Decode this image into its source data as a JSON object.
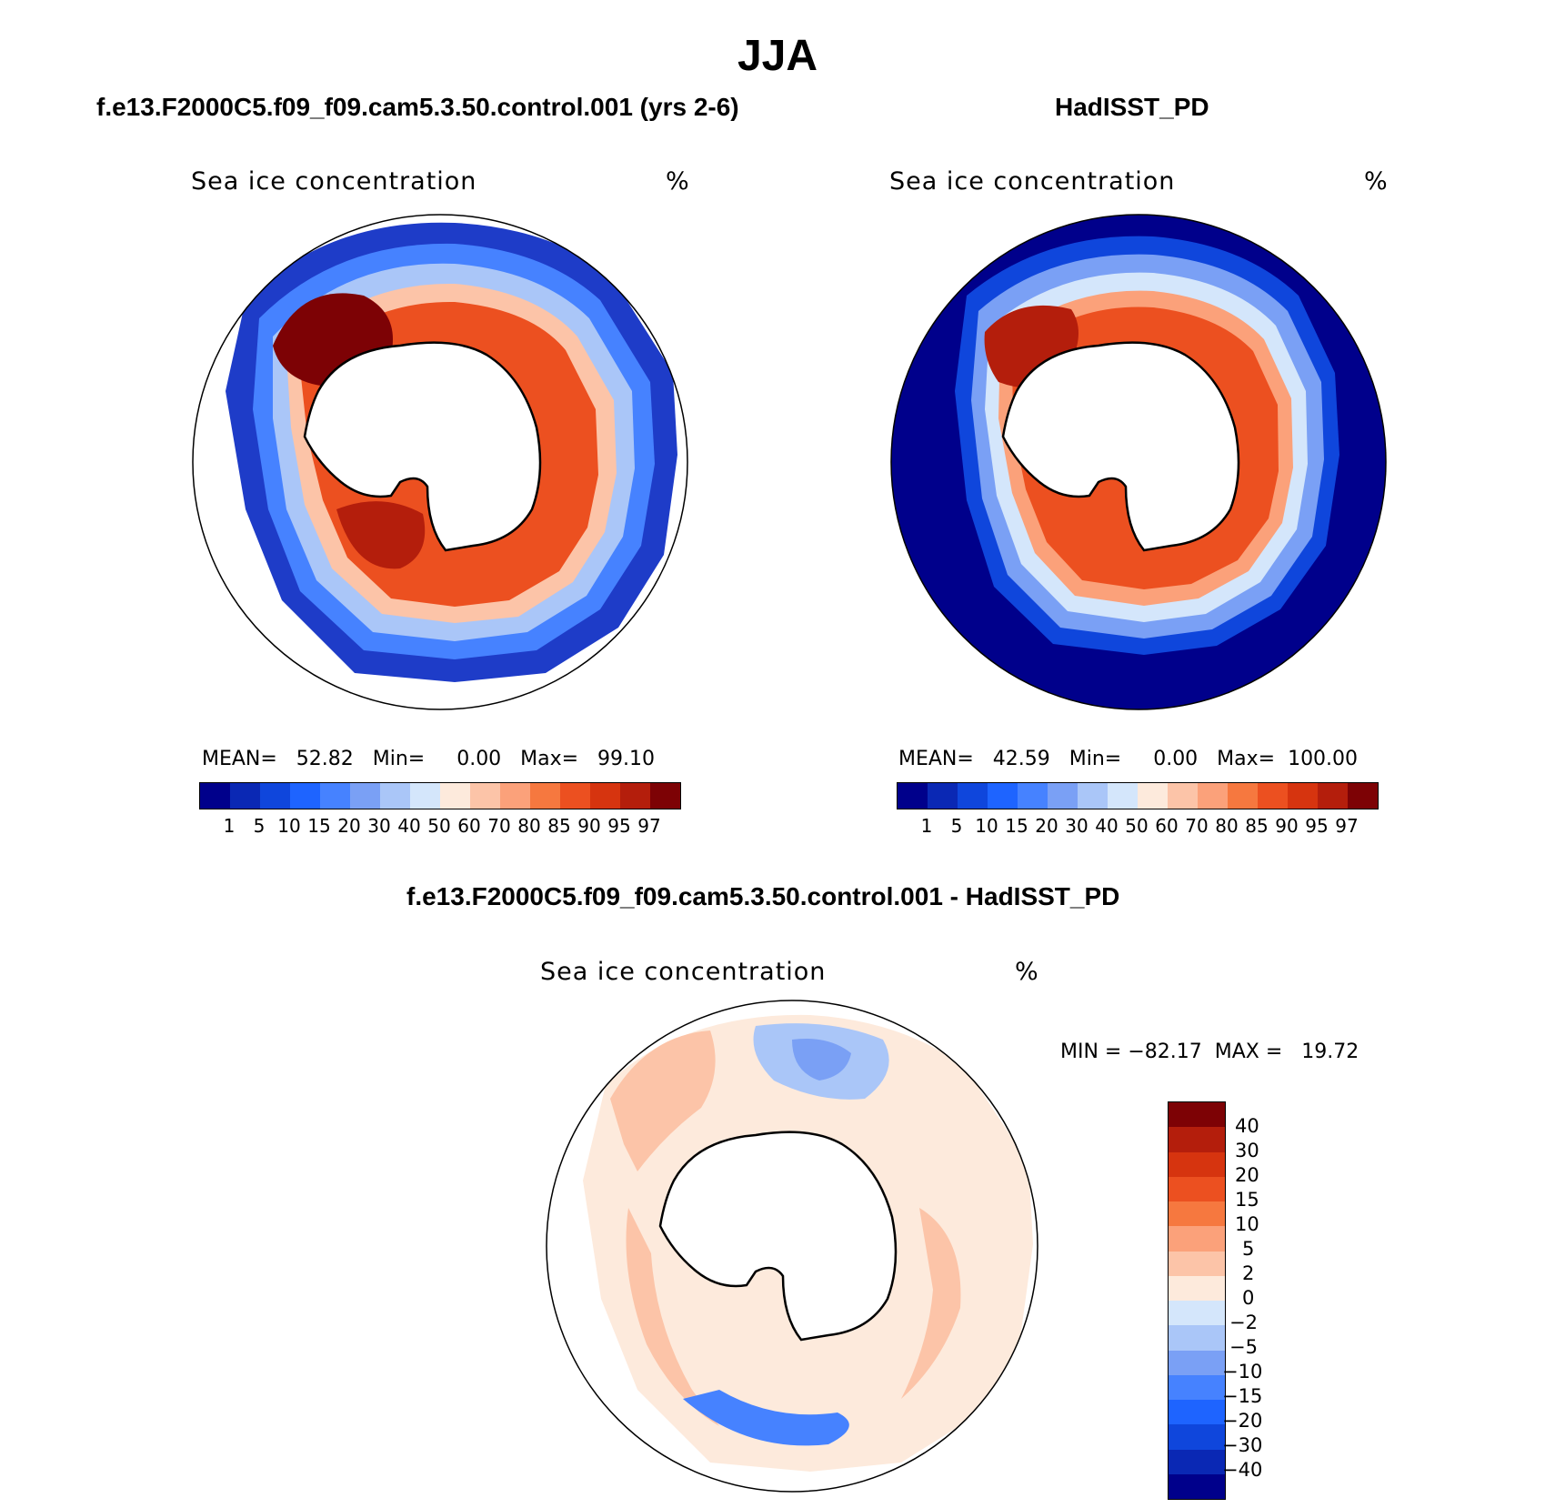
{
  "figure_title": "JJA",
  "color_scale": [
    "#00008b",
    "#0a28b4",
    "#0f46dc",
    "#1e64ff",
    "#4682ff",
    "#7aa0f5",
    "#aac6f8",
    "#d4e6fb",
    "#fdeadc",
    "#fcc4a8",
    "#fba17a",
    "#f6783f",
    "#ec5020",
    "#d6340f",
    "#b41e0c",
    "#7d0205"
  ],
  "diff_color_scale": [
    "#00008b",
    "#0a28b4",
    "#0f46dc",
    "#1e64ff",
    "#4682ff",
    "#7aa0f5",
    "#aac6f8",
    "#d4e6fb",
    "#fdeadc",
    "#fcc4a8",
    "#fba17a",
    "#f6783f",
    "#ec5020",
    "#d6340f",
    "#b41e0c",
    "#7d0205"
  ],
  "panels": [
    {
      "case_title": "f.e13.F2000C5.f09_f09.cam5.3.50.control.001 (yrs 2-6)",
      "variable": "Sea ice concentration",
      "units": "%",
      "stats": "MEAN=   52.82   Min=     0.00   Max=   99.10",
      "colorbar_levels": [
        "1",
        "5",
        "10",
        "15",
        "20",
        "30",
        "40",
        "50",
        "60",
        "70",
        "80",
        "85",
        "90",
        "95",
        "97"
      ]
    },
    {
      "case_title": "HadISST_PD",
      "variable": "Sea ice concentration",
      "units": "%",
      "stats": "MEAN=   42.59   Min=     0.00   Max=  100.00",
      "colorbar_levels": [
        "1",
        "5",
        "10",
        "15",
        "20",
        "30",
        "40",
        "50",
        "60",
        "70",
        "80",
        "85",
        "90",
        "95",
        "97"
      ]
    }
  ],
  "difference": {
    "case_title": "f.e13.F2000C5.f09_f09.cam5.3.50.control.001 - HadISST_PD",
    "variable": "Sea ice concentration",
    "units": "%",
    "stats": "MIN = −82.17  MAX =   19.72",
    "colorbar_levels": [
      "40",
      "30",
      "20",
      "15",
      "10",
      "5",
      "2",
      "0",
      "−2",
      "−5",
      "−10",
      "−15",
      "−20",
      "−30",
      "−40"
    ]
  }
}
